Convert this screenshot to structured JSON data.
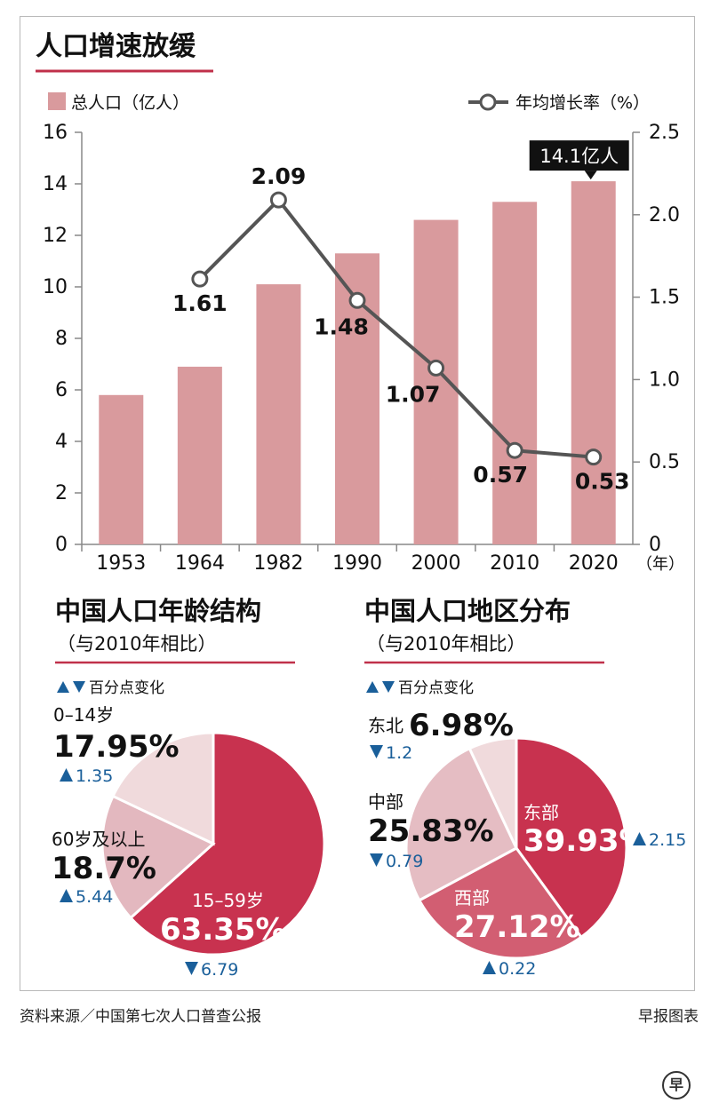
{
  "header": {
    "title": "人口增速放缓"
  },
  "legend": {
    "bar_label": "总人口（亿人）",
    "line_label": "年均增长率（%）"
  },
  "callout": {
    "text": "14.1亿人"
  },
  "year_unit": "（年）",
  "colors": {
    "bar": "#d99a9d",
    "line": "#555555",
    "accent": "#c8324f",
    "red_rule": "#c0304a",
    "up_down": "#1a5f9a"
  },
  "chart_data": [
    {
      "type": "bar",
      "categories": [
        "1953",
        "1964",
        "1982",
        "1990",
        "2000",
        "2010",
        "2020"
      ],
      "series": [
        {
          "name": "总人口（亿人）",
          "values": [
            5.8,
            6.9,
            10.1,
            11.3,
            12.6,
            13.3,
            14.1
          ]
        }
      ],
      "ylim": [
        0,
        16
      ],
      "yticks": [
        0,
        2,
        4,
        6,
        8,
        10,
        12,
        14,
        16
      ],
      "title": "人口增速放缓"
    },
    {
      "type": "line",
      "categories": [
        "1964",
        "1982",
        "1990",
        "2000",
        "2010",
        "2020"
      ],
      "series": [
        {
          "name": "年均增长率（%）",
          "values": [
            1.61,
            2.09,
            1.48,
            1.07,
            0.57,
            0.53
          ],
          "labels": [
            "1.61",
            "2.09",
            "1.48",
            "1.07",
            "0.57",
            "0.53"
          ]
        }
      ],
      "ylim": [
        0,
        2.5
      ],
      "yticks": [
        "0",
        "0.5",
        "1.0",
        "1.5",
        "2.0",
        "2.5"
      ]
    },
    {
      "type": "pie",
      "title": "中国人口年龄结构",
      "subtitle": "（与2010年相比）",
      "change_note": "百分点变化",
      "slices": [
        {
          "label": "15–59岁",
          "value": 63.35,
          "value_text": "63.35%",
          "change": "6.79",
          "direction": "down",
          "color": "#c8324f"
        },
        {
          "label": "60岁及以上",
          "value": 18.7,
          "value_text": "18.7%",
          "change": "5.44",
          "direction": "up",
          "color": "#e3b8bf"
        },
        {
          "label": "0–14岁",
          "value": 17.95,
          "value_text": "17.95%",
          "change": "1.35",
          "direction": "up",
          "color": "#f0dadc"
        }
      ]
    },
    {
      "type": "pie",
      "title": "中国人口地区分布",
      "subtitle": "（与2010年相比）",
      "change_note": "百分点变化",
      "slices": [
        {
          "label": "东部",
          "value": 39.93,
          "value_text": "39.93%",
          "change": "2.15",
          "direction": "up",
          "color": "#c8324f"
        },
        {
          "label": "西部",
          "value": 27.12,
          "value_text": "27.12%",
          "change": "0.22",
          "direction": "up",
          "color": "#d25e72"
        },
        {
          "label": "中部",
          "value": 25.83,
          "value_text": "25.83%",
          "change": "0.79",
          "direction": "down",
          "color": "#e5bdc3"
        },
        {
          "label": "东北",
          "value": 6.98,
          "value_text": "6.98%",
          "change": "1.2",
          "direction": "down",
          "color": "#f0dadc"
        }
      ]
    }
  ],
  "footer": {
    "source": "资料来源／中国第七次人口普查公报",
    "credit": "早报图表",
    "logo": "早"
  }
}
